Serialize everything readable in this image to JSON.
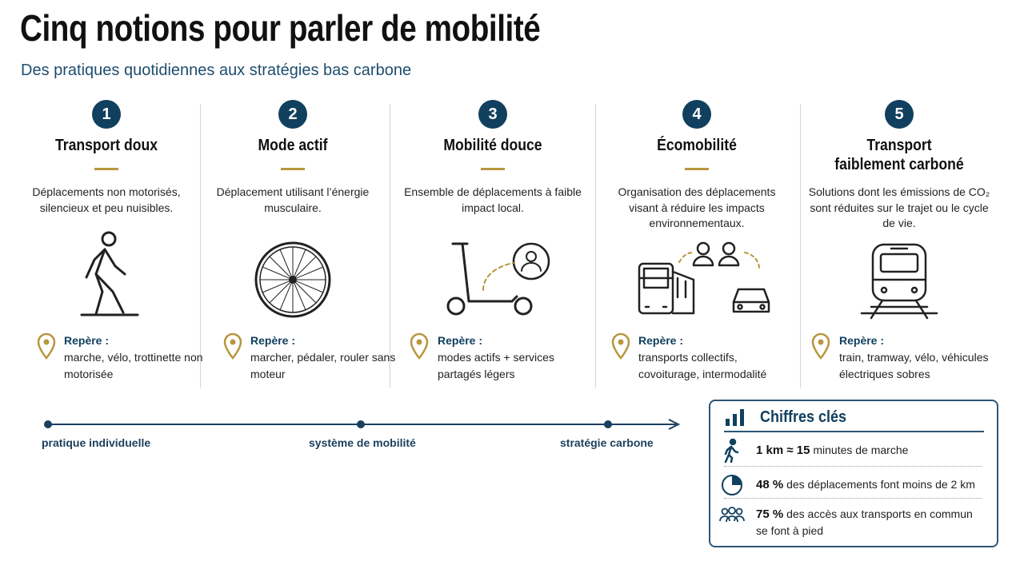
{
  "header": {
    "title": "Cinq notions pour parler de mobilité",
    "subtitle": "Des pratiques quotidiennes aux stratégies bas carbone"
  },
  "notions": [
    {
      "number": "1",
      "title": "Transport doux",
      "description": "Déplacements non motorisés, silencieux et peu nuisibles.",
      "marker_label": "Repère :",
      "marker_text": "marche, vélo, trottinette non motorisée"
    },
    {
      "number": "2",
      "title": "Mode actif",
      "description": "Déplacement utilisant l’énergie musculaire.",
      "marker_label": "Repère :",
      "marker_text": "marcher, pédaler, rouler sans moteur"
    },
    {
      "number": "3",
      "title": "Mobilité douce",
      "description": "Ensemble de déplacements à faible impact local.",
      "marker_label": "Repère :",
      "marker_text": "modes actifs + services partagés légers"
    },
    {
      "number": "4",
      "title": "Écomobilité",
      "description": "Organisation des déplacements visant à réduire les impacts environnementaux.",
      "marker_label": "Repère :",
      "marker_text": "transports collectifs, covoiturage, intermodalité"
    },
    {
      "number": "5",
      "title": "Transport faiblement carboné",
      "description": "Solutions dont les émissions de CO₂ sont réduites sur le trajet ou le cycle de vie.",
      "marker_label": "Repère :",
      "marker_text": "train, tramway, vélo, véhicules électriques sobres"
    }
  ],
  "timeline": {
    "labels": [
      "pratique individuelle",
      "système de mobilité",
      "stratégie carbone"
    ]
  },
  "key_figures": {
    "title": "Chiffres clés",
    "items": [
      {
        "value": "1 km ≈ 15",
        "text": "minutes de marche"
      },
      {
        "value": "48 %",
        "text": "des déplacements font moins de 2 km"
      },
      {
        "value": "75 %",
        "text": "des accès aux transports en commun se font à pied"
      }
    ]
  }
}
